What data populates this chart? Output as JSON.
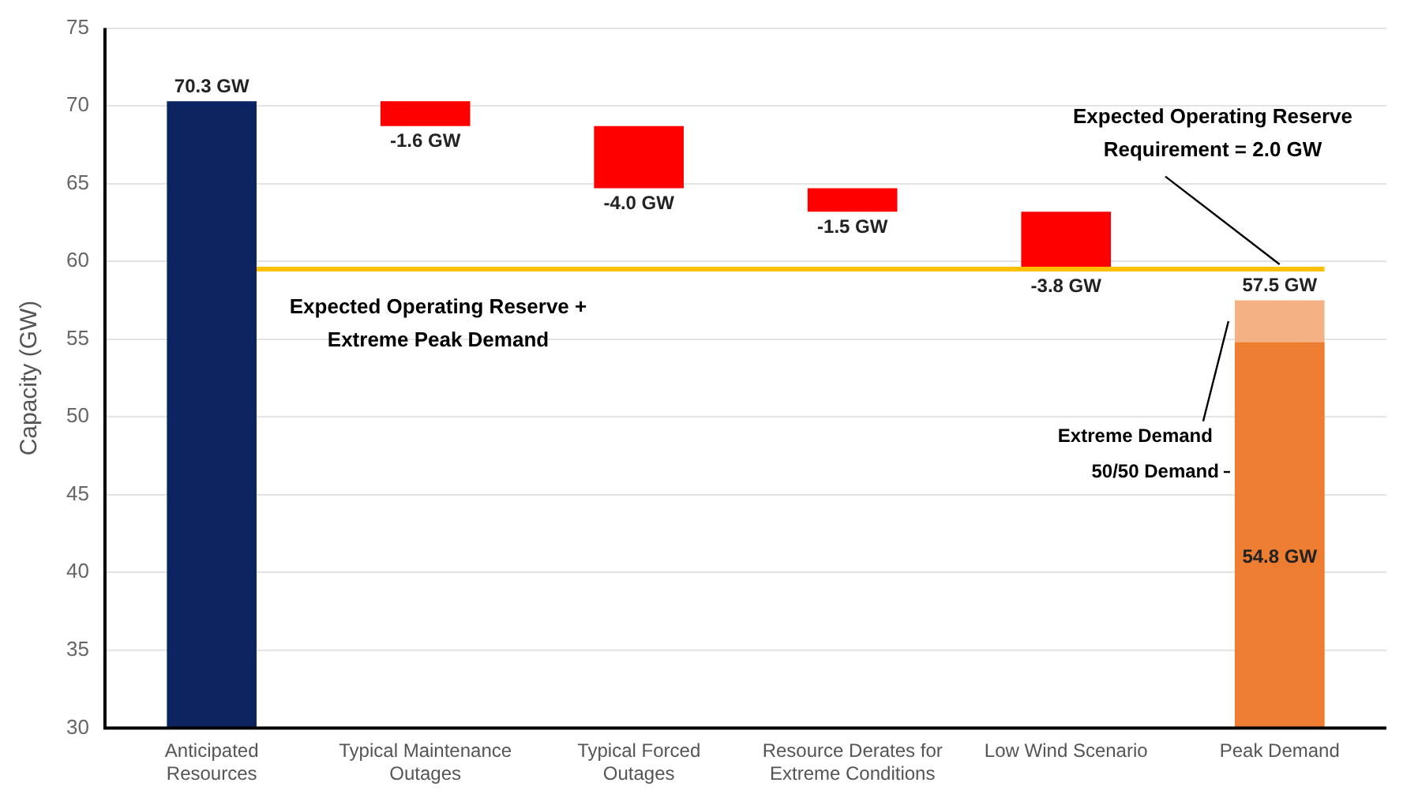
{
  "chart_data": {
    "type": "bar",
    "ylabel": "Capacity (GW)",
    "categories": [
      "Anticipated Resources",
      "Typical Maintenance Outages",
      "Typical Forced Outages",
      "Resource Derates for Extreme Conditions",
      "Low Wind Scenario",
      "Peak Demand"
    ],
    "series": [
      {
        "colors": [
          "#0c2461",
          "#ff0000",
          "#ff0000",
          "#ff0000",
          "#ff0000",
          null
        ],
        "values": [
          70.3,
          -1.6,
          -4.0,
          -1.5,
          -3.8,
          null
        ],
        "base": [
          null,
          70.3,
          68.7,
          64.7,
          63.2,
          null
        ],
        "value_labels": [
          "70.3 GW",
          "-1.6 GW",
          "-4.0 GW",
          "-1.5 GW",
          "-3.8 GW",
          null
        ]
      },
      {
        "name": "Extreme Demand",
        "color": "#f4b183",
        "values": [
          null,
          null,
          null,
          null,
          null,
          57.5
        ],
        "value_labels": [
          null,
          null,
          null,
          null,
          null,
          "57.5 GW"
        ]
      },
      {
        "name": "50/50 Demand",
        "color": "#ed7d31",
        "values": [
          null,
          null,
          null,
          null,
          null,
          54.8
        ],
        "value_labels": [
          null,
          null,
          null,
          null,
          null,
          "54.8 GW"
        ]
      }
    ],
    "ylim": [
      30,
      75
    ],
    "yticks": [
      30,
      35,
      40,
      45,
      50,
      55,
      60,
      65,
      70,
      75
    ],
    "grid": "y",
    "legend": false,
    "ref_lines": [
      {
        "axis": "y",
        "value": 59.5,
        "label": "Expected Operating Reserve + Extreme Peak Demand",
        "color": "#ffc000"
      }
    ],
    "annotations": [
      {
        "text": "Expected Operating Reserve Requirement = 2.0 GW",
        "x": "Peak Demand",
        "y": 59.5
      }
    ]
  }
}
